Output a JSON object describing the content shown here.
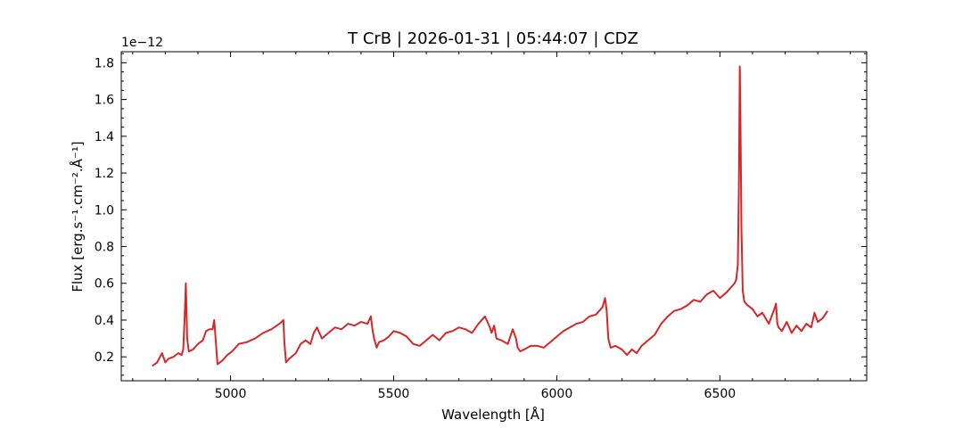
{
  "chart_data": {
    "type": "line",
    "title": "T CrB | 2026-01-31 | 05:44:07 | CDZ",
    "xlabel": "Wavelength [Å]",
    "ylabel": "Flux [erg.s⁻¹.cm⁻².Å⁻¹]",
    "offset_text": "1e−12",
    "xlim": [
      4665,
      6950
    ],
    "ylim": [
      0.07,
      1.86
    ],
    "x_ticks": [
      5000,
      5500,
      6000,
      6500
    ],
    "x_tick_labels": [
      "5000",
      "5500",
      "6000",
      "6500"
    ],
    "y_ticks": [
      0.2,
      0.4,
      0.6,
      0.8,
      1.0,
      1.2,
      1.4,
      1.6,
      1.8
    ],
    "y_tick_labels": [
      "0.2",
      "0.4",
      "0.6",
      "0.8",
      "1.0",
      "1.2",
      "1.4",
      "1.6",
      "1.8"
    ],
    "series": [
      {
        "color": "#d62728",
        "x": [
          4760,
          4775,
          4790,
          4800,
          4810,
          4825,
          4840,
          4850,
          4855,
          4859,
          4863,
          4867,
          4872,
          4885,
          4900,
          4915,
          4925,
          4935,
          4945,
          4950,
          4955,
          4960,
          4975,
          4990,
          5005,
          5025,
          5050,
          5075,
          5100,
          5125,
          5150,
          5162,
          5165,
          5170,
          5180,
          5200,
          5215,
          5230,
          5245,
          5255,
          5265,
          5280,
          5300,
          5320,
          5340,
          5360,
          5380,
          5400,
          5420,
          5430,
          5435,
          5440,
          5448,
          5455,
          5470,
          5485,
          5500,
          5520,
          5540,
          5560,
          5580,
          5600,
          5620,
          5640,
          5660,
          5680,
          5700,
          5720,
          5740,
          5760,
          5780,
          5795,
          5800,
          5808,
          5815,
          5830,
          5850,
          5865,
          5875,
          5880,
          5888,
          5900,
          5920,
          5940,
          5960,
          5980,
          6000,
          6020,
          6040,
          6060,
          6080,
          6100,
          6120,
          6140,
          6148,
          6153,
          6158,
          6165,
          6180,
          6200,
          6215,
          6230,
          6245,
          6260,
          6280,
          6300,
          6320,
          6340,
          6360,
          6380,
          6400,
          6420,
          6440,
          6460,
          6480,
          6500,
          6520,
          6535,
          6545,
          6550,
          6555,
          6558,
          6561,
          6563,
          6566,
          6570,
          6575,
          6585,
          6600,
          6615,
          6630,
          6640,
          6650,
          6665,
          6672,
          6676,
          6680,
          6690,
          6705,
          6720,
          6735,
          6750,
          6765,
          6780,
          6790,
          6800,
          6815,
          6830
        ],
        "y": [
          0.15,
          0.17,
          0.22,
          0.17,
          0.19,
          0.2,
          0.22,
          0.21,
          0.24,
          0.4,
          0.6,
          0.3,
          0.23,
          0.24,
          0.27,
          0.29,
          0.34,
          0.35,
          0.35,
          0.4,
          0.28,
          0.16,
          0.18,
          0.21,
          0.23,
          0.27,
          0.28,
          0.3,
          0.33,
          0.35,
          0.38,
          0.4,
          0.28,
          0.17,
          0.19,
          0.22,
          0.27,
          0.29,
          0.27,
          0.33,
          0.36,
          0.3,
          0.33,
          0.36,
          0.35,
          0.38,
          0.37,
          0.39,
          0.38,
          0.42,
          0.35,
          0.3,
          0.25,
          0.28,
          0.29,
          0.31,
          0.34,
          0.33,
          0.31,
          0.27,
          0.26,
          0.29,
          0.32,
          0.29,
          0.33,
          0.34,
          0.36,
          0.35,
          0.33,
          0.38,
          0.42,
          0.36,
          0.33,
          0.37,
          0.3,
          0.29,
          0.27,
          0.35,
          0.3,
          0.25,
          0.23,
          0.24,
          0.26,
          0.26,
          0.25,
          0.28,
          0.31,
          0.34,
          0.36,
          0.38,
          0.39,
          0.42,
          0.43,
          0.47,
          0.52,
          0.45,
          0.3,
          0.25,
          0.26,
          0.24,
          0.21,
          0.24,
          0.22,
          0.26,
          0.29,
          0.32,
          0.38,
          0.42,
          0.45,
          0.46,
          0.48,
          0.51,
          0.5,
          0.54,
          0.56,
          0.52,
          0.55,
          0.58,
          0.6,
          0.62,
          0.7,
          1.1,
          1.78,
          1.5,
          0.9,
          0.56,
          0.5,
          0.48,
          0.46,
          0.42,
          0.44,
          0.41,
          0.38,
          0.45,
          0.49,
          0.38,
          0.36,
          0.34,
          0.39,
          0.33,
          0.37,
          0.34,
          0.38,
          0.36,
          0.44,
          0.39,
          0.41,
          0.45
        ]
      }
    ]
  }
}
